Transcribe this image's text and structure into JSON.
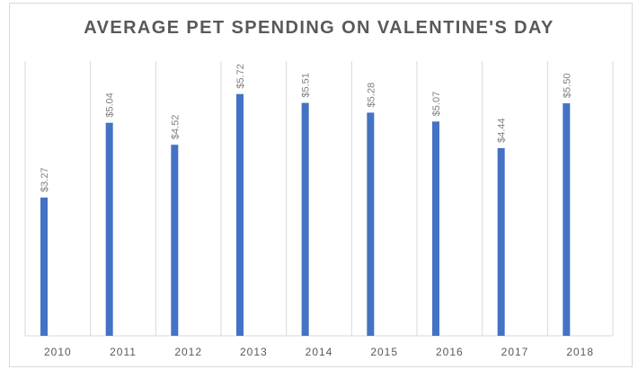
{
  "chart_data": {
    "type": "bar",
    "title": "AVERAGE PET SPENDING ON VALENTINE'S DAY",
    "categories": [
      "2010",
      "2011",
      "2012",
      "2013",
      "2014",
      "2015",
      "2016",
      "2017",
      "2018"
    ],
    "values": [
      3.27,
      5.04,
      4.52,
      5.72,
      5.51,
      5.28,
      5.07,
      4.44,
      5.5
    ],
    "data_labels": [
      "$3.27",
      "$5.04",
      "$4.52",
      "$5.72",
      "$5.51",
      "$5.28",
      "$5.07",
      "$4.44",
      "$5.50"
    ],
    "xlabel": "",
    "ylabel": "",
    "ylim": [
      0,
      6.5
    ],
    "grid": "vertical category separators",
    "legend": "none",
    "bar_color": "#4472c4",
    "gridline_color": "#d9d9d9"
  }
}
